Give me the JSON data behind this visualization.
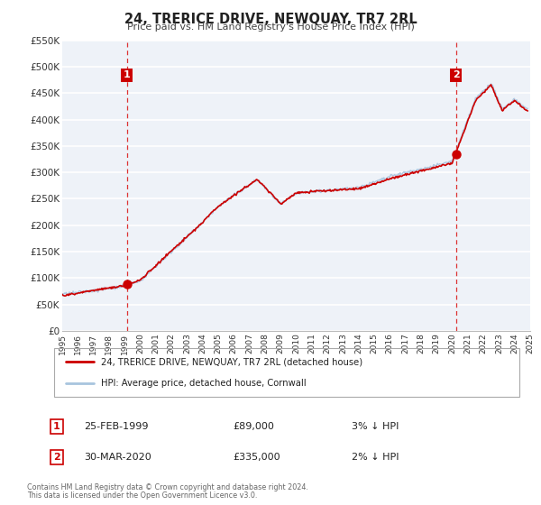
{
  "title": "24, TRERICE DRIVE, NEWQUAY, TR7 2RL",
  "subtitle": "Price paid vs. HM Land Registry's House Price Index (HPI)",
  "legend_line1": "24, TRERICE DRIVE, NEWQUAY, TR7 2RL (detached house)",
  "legend_line2": "HPI: Average price, detached house, Cornwall",
  "footnote1": "Contains HM Land Registry data © Crown copyright and database right 2024.",
  "footnote2": "This data is licensed under the Open Government Licence v3.0.",
  "sale1_date": "25-FEB-1999",
  "sale1_price": "£89,000",
  "sale1_hpi": "3% ↓ HPI",
  "sale1_year": 1999.15,
  "sale1_value": 89000,
  "sale2_date": "30-MAR-2020",
  "sale2_price": "£335,000",
  "sale2_hpi": "2% ↓ HPI",
  "sale2_year": 2020.25,
  "sale2_value": 335000,
  "vline1_x": 1999.15,
  "vline2_x": 2020.25,
  "xmin": 1995,
  "xmax": 2025,
  "ymin": 0,
  "ymax": 550000,
  "yticks": [
    0,
    50000,
    100000,
    150000,
    200000,
    250000,
    300000,
    350000,
    400000,
    450000,
    500000,
    550000
  ],
  "ytick_labels": [
    "£0",
    "£50K",
    "£100K",
    "£150K",
    "£200K",
    "£250K",
    "£300K",
    "£350K",
    "£400K",
    "£450K",
    "£500K",
    "£550K"
  ],
  "xticks": [
    1995,
    1996,
    1997,
    1998,
    1999,
    2000,
    2001,
    2002,
    2003,
    2004,
    2005,
    2006,
    2007,
    2008,
    2009,
    2010,
    2011,
    2012,
    2013,
    2014,
    2015,
    2016,
    2017,
    2018,
    2019,
    2020,
    2021,
    2022,
    2023,
    2024,
    2025
  ],
  "bg_color": "#eef2f8",
  "grid_color": "#ffffff",
  "hpi_color": "#a8c4de",
  "sale_color": "#cc0000",
  "vline_color": "#dd3333",
  "title_color": "#222222",
  "label_box_color": "#cc0000",
  "label_box_text": "#ffffff"
}
